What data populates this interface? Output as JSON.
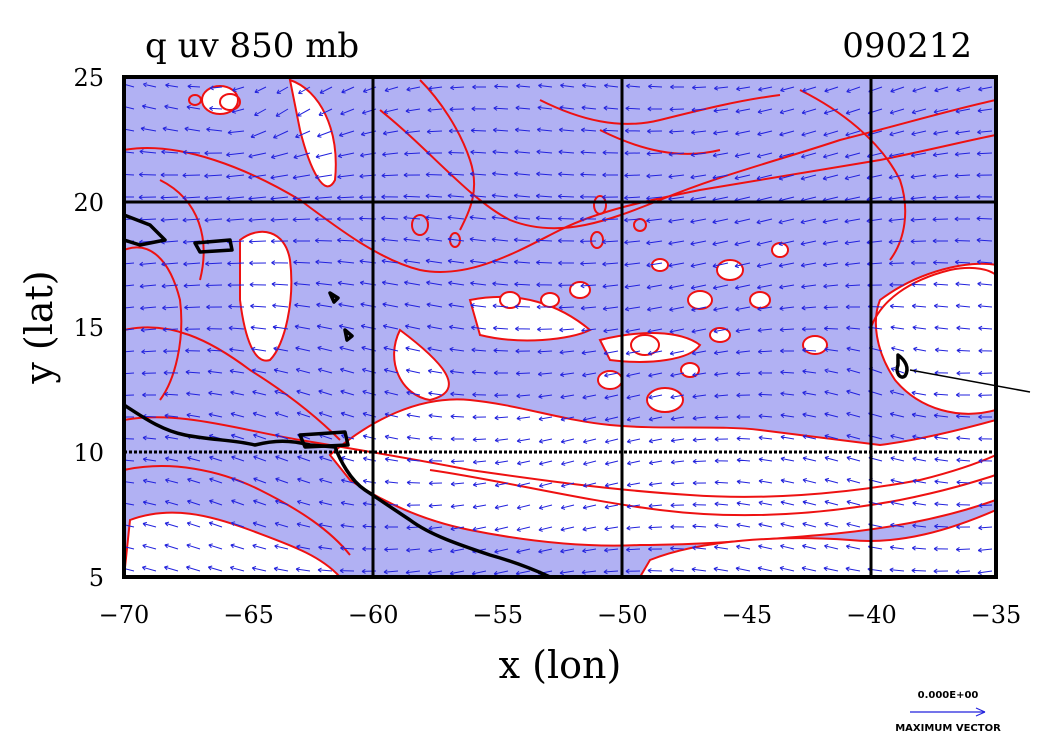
{
  "title": "q uv 850 mb",
  "date_label": "090212",
  "xlabel": "x (lon)",
  "ylabel": "y (lat)",
  "xticks": [
    -70,
    -65,
    -60,
    -55,
    -50,
    -45,
    -40,
    -35
  ],
  "yticks": [
    5,
    10,
    15,
    20,
    25
  ],
  "xlim": [
    -70,
    -35
  ],
  "ylim": [
    5,
    25
  ],
  "grid_lon": [
    -60,
    -50,
    -40
  ],
  "grid_lat": [
    10,
    20
  ],
  "vector_ref": {
    "value": "0.000E+00",
    "label": "MAXIMUM VECTOR"
  },
  "colors": {
    "fill": "#b1b1f3",
    "contour": "#ee1111",
    "vector": "#2222dd",
    "coast": "#000000"
  },
  "chart_data": {
    "type": "map",
    "variable": "q",
    "level": "850 mb",
    "xlabel": "x (lon)",
    "ylabel": "y (lat)",
    "xlim": [
      -70,
      -35
    ],
    "ylim": [
      5,
      25
    ],
    "grid": true
  }
}
